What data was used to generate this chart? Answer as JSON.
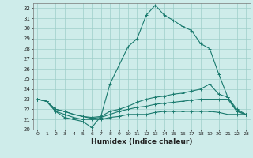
{
  "xlabel": "Humidex (Indice chaleur)",
  "ylabel": "",
  "bg_color": "#ceecea",
  "line_color": "#1a7a6e",
  "grid_color": "#9ececa",
  "xlim": [
    -0.5,
    23.5
  ],
  "ylim": [
    20,
    32.5
  ],
  "xtick_vals": [
    0,
    1,
    2,
    3,
    4,
    5,
    6,
    7,
    8,
    9,
    10,
    11,
    12,
    13,
    14,
    15,
    16,
    17,
    18,
    19,
    20,
    21,
    22,
    23
  ],
  "ytick_vals": [
    20,
    21,
    22,
    23,
    24,
    25,
    26,
    27,
    28,
    29,
    30,
    31,
    32
  ],
  "curves": [
    {
      "x": [
        0,
        1,
        2,
        3,
        4,
        5,
        6,
        7,
        8,
        10,
        11,
        12,
        13,
        14,
        15,
        16,
        17,
        18,
        19,
        20,
        21,
        22,
        23
      ],
      "y": [
        23.0,
        22.8,
        21.8,
        21.2,
        21.0,
        20.8,
        20.2,
        21.3,
        24.5,
        28.2,
        29.0,
        31.3,
        32.3,
        31.3,
        30.8,
        30.2,
        29.8,
        28.5,
        28.0,
        25.5,
        23.2,
        22.0,
        21.5
      ]
    },
    {
      "x": [
        0,
        1,
        2,
        3,
        4,
        5,
        6,
        7,
        8,
        9,
        10,
        11,
        12,
        13,
        14,
        15,
        16,
        17,
        18,
        19,
        20,
        21,
        22,
        23
      ],
      "y": [
        23.0,
        22.8,
        21.8,
        21.5,
        21.2,
        21.0,
        21.0,
        21.0,
        21.2,
        21.3,
        21.5,
        21.5,
        21.5,
        21.7,
        21.8,
        21.8,
        21.8,
        21.8,
        21.8,
        21.8,
        21.7,
        21.5,
        21.5,
        21.5
      ]
    },
    {
      "x": [
        0,
        1,
        2,
        3,
        4,
        5,
        6,
        7,
        8,
        9,
        10,
        11,
        12,
        13,
        14,
        15,
        16,
        17,
        18,
        19,
        20,
        21,
        22,
        23
      ],
      "y": [
        23.0,
        22.8,
        22.0,
        21.8,
        21.5,
        21.3,
        21.1,
        21.2,
        21.5,
        21.8,
        22.0,
        22.2,
        22.3,
        22.5,
        22.6,
        22.7,
        22.8,
        22.9,
        23.0,
        23.0,
        23.0,
        23.0,
        21.8,
        21.5
      ]
    },
    {
      "x": [
        0,
        1,
        2,
        3,
        4,
        5,
        6,
        7,
        8,
        9,
        10,
        11,
        12,
        13,
        14,
        15,
        16,
        17,
        18,
        19,
        20,
        21,
        22,
        23
      ],
      "y": [
        23.0,
        22.8,
        22.0,
        21.8,
        21.5,
        21.3,
        21.2,
        21.3,
        21.8,
        22.0,
        22.3,
        22.7,
        23.0,
        23.2,
        23.3,
        23.5,
        23.6,
        23.8,
        24.0,
        24.5,
        23.5,
        23.2,
        21.8,
        21.5
      ]
    }
  ]
}
